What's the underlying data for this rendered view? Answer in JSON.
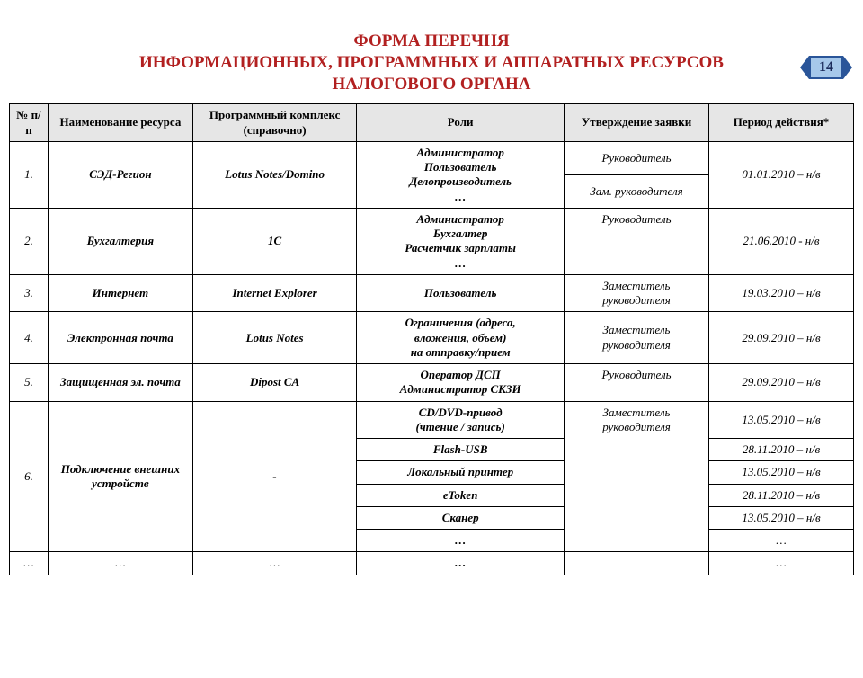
{
  "page_number": "14",
  "title_line1": "ФОРМА ПЕРЕЧНЯ",
  "title_line2": "ИНФОРМАЦИОННЫХ, ПРОГРАММНЫХ И АППАРАТНЫХ РЕСУРСОВ",
  "title_line3": "НАЛОГОВОГО ОРГАНА",
  "columns": {
    "c1": "№ п/п",
    "c2": "Наименование ресурса",
    "c3": "Программный комплекс (справочно)",
    "c4": "Роли",
    "c5": "Утверждение заявки",
    "c6": "Период действия*"
  },
  "rows": {
    "r1": {
      "num": "1.",
      "name": "СЭД-Регион",
      "complex": "Lotus Notes/Domino",
      "roles_l1": "Администратор",
      "roles_l2": "Пользователь",
      "roles_l3": "Делопроизводитель",
      "roles_l4": "…",
      "approver1": "Руководитель",
      "approver2": "Зам. руководителя",
      "period": "01.01.2010 – н/в"
    },
    "r2": {
      "num": "2.",
      "name": "Бухгалтерия",
      "complex": "1С",
      "roles_l1": "Администратор",
      "roles_l2": "Бухгалтер",
      "roles_l3": "Расчетчик зарплаты",
      "roles_l4": "…",
      "approver": "Руководитель",
      "period": "21.06.2010 - н/в"
    },
    "r3": {
      "num": "3.",
      "name": "Интернет",
      "complex": "Internet Explorer",
      "roles": "Пользователь",
      "approver": "Заместитель руководителя",
      "period": "19.03.2010 – н/в"
    },
    "r4": {
      "num": "4.",
      "name": "Электронная почта",
      "complex": "Lotus Notes",
      "roles_l1": "Ограничения (адреса,",
      "roles_l2": "вложения, объем)",
      "roles_l3": "на отправку/прием",
      "approver": "Заместитель руководителя",
      "period": "29.09.2010 – н/в"
    },
    "r5": {
      "num": "5.",
      "name": "Защищенная эл. почта",
      "complex": "Dipost CA",
      "roles_l1": "Оператор ДСП",
      "roles_l2": "Администратор СКЗИ",
      "approver": "Руководитель",
      "period": "29.09.2010 – н/в"
    },
    "r6": {
      "num": "6.",
      "name": "Подключение внешних устройств",
      "complex": "-",
      "sub1_role_l1": "CD/DVD-привод",
      "sub1_role_l2": "(чтение / запись)",
      "sub1_period": "13.05.2010 – н/в",
      "sub2_role": "Flash-USB",
      "sub2_period": "28.11.2010 – н/в",
      "sub3_role": "Локальный принтер",
      "sub3_period": "13.05.2010 – н/в",
      "sub4_role": "eToken",
      "sub4_period": "28.11.2010 – н/в",
      "sub5_role": "Сканер",
      "sub5_period": "13.05.2010 – н/в",
      "sub6_role": "…",
      "sub6_period": "…",
      "approver": "Заместитель руководителя"
    },
    "rlast": {
      "num": "…",
      "name": "…",
      "complex": "…",
      "roles": "…",
      "approver": "",
      "period": "…"
    }
  },
  "colors": {
    "title": "#b22020",
    "header_bg": "#e6e6e6",
    "border": "#000000",
    "badge_bg": "#a6c8ea",
    "badge_border": "#2a5599"
  }
}
